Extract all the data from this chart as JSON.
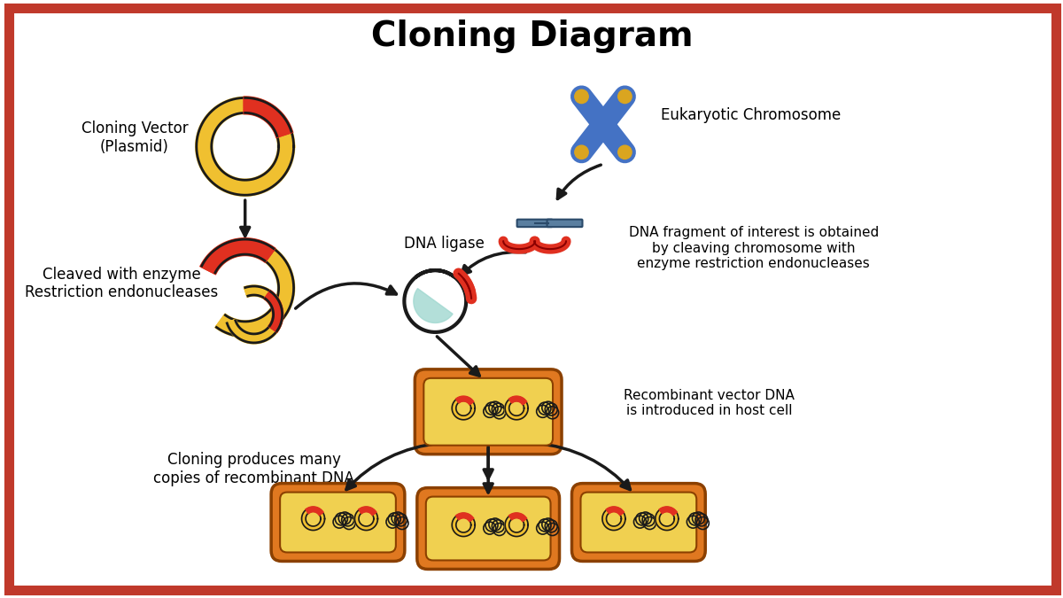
{
  "title": "Cloning Diagram",
  "title_fontsize": 28,
  "title_fontweight": "bold",
  "bg_color": "#ffffff",
  "border_color": "#c0392b",
  "border_width": 8,
  "watermark_color": "#d0e8f0",
  "labels": {
    "cloning_vector": "Cloning Vector\n(Plasmid)",
    "cleaved": "Cleaved with enzyme\nRestriction endonucleases",
    "dna_ligase": "DNA ligase",
    "eukaryotic": "Eukaryotic Chromosome",
    "dna_fragment": "DNA fragment of interest is obtained\nby cleaving chromosome with\nenzyme restriction endonucleases",
    "recombinant": "Recombinant vector DNA\nis introduced in host cell",
    "cloning_copies": "Cloning produces many\ncopies of recombinant DNA"
  },
  "colors": {
    "plasmid_outer": "#1a1a1a",
    "plasmid_ring": "#f0c030",
    "plasmid_red": "#e03020",
    "arrow_color": "#1a1a1a",
    "chromosome_blue": "#4472c4",
    "chromosome_yellow": "#daa520",
    "dna_fragment_blue": "#5a7fa0",
    "dna_fragment_red": "#e03020",
    "cell_outer": "#e07820",
    "cell_inner": "#f0d050",
    "plasmid_small_ring": "#f0c030",
    "ligase_teal": "#a0d8d0",
    "ligase_red": "#e03020"
  }
}
